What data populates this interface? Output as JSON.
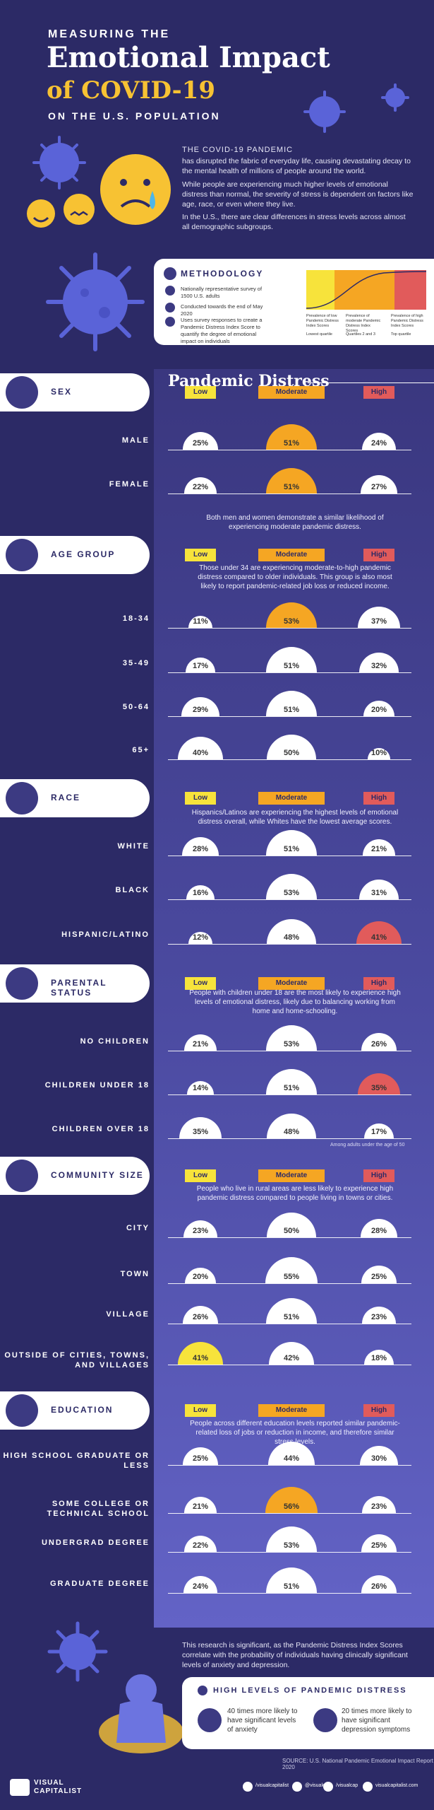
{
  "header": {
    "pre": "MEASURING THE",
    "title_line1": "Emotional Impact",
    "title_line2": "of COVID-19",
    "post": "ON THE U.S. POPULATION"
  },
  "intro": {
    "heading": "THE COVID-19 PANDEMIC",
    "p1": "has disrupted the fabric of everyday life, causing devastating decay to the mental health of millions of people around the world.",
    "p2": "While people are experiencing much higher levels of emotional distress than normal, the severity of stress is dependent on factors like age, race, or even where they live.",
    "p3": "In the U.S., there are clear differences in stress levels across almost all demographic subgroups."
  },
  "methodology": {
    "title": "METHODOLOGY",
    "items": [
      "Nationally representative survey of 1500 U.S. adults",
      "Conducted towards the end of May 2020",
      "Uses survey responses to create a Pandemic Distress Index Score to quantify the degree of emotional impact on individuals"
    ],
    "legend": [
      "Prevalence of low Pandemic Distress Index Scores",
      "Prevalence of moderate Pandemic Distress Index Scores",
      "Prevalence of high Pandemic Distress Index Scores"
    ],
    "keys": [
      "Lowest quartile",
      "Quartiles 2 and 3",
      "Top quartile"
    ]
  },
  "panel_title": "Pandemic Distress",
  "levels": {
    "low": "Low",
    "moderate": "Moderate",
    "high": "High"
  },
  "colors": {
    "low": "#f7e33b",
    "moderate": "#f5a623",
    "high": "#e15b5b",
    "bg": "#2c2a66"
  },
  "chart_data": {
    "type": "table",
    "title": "Pandemic Distress",
    "columns": [
      "Low",
      "Moderate",
      "High"
    ],
    "groups": [
      {
        "name": "SEX",
        "rows": [
          {
            "label": "MALE",
            "values": [
              25,
              51,
              24
            ]
          },
          {
            "label": "FEMALE",
            "values": [
              22,
              51,
              27
            ]
          }
        ],
        "note": "Both men and women demonstrate a similar likelihood of experiencing moderate pandemic distress."
      },
      {
        "name": "AGE GROUP",
        "note": "Those under 34 are experiencing moderate-to-high pandemic distress compared to older individuals. This group is also most likely to report pandemic-related job loss or reduced income.",
        "rows": [
          {
            "label": "18-34",
            "values": [
              11,
              53,
              37
            ]
          },
          {
            "label": "35-49",
            "values": [
              17,
              51,
              32
            ]
          },
          {
            "label": "50-64",
            "values": [
              29,
              51,
              20
            ]
          },
          {
            "label": "65+",
            "values": [
              40,
              50,
              10
            ]
          }
        ]
      },
      {
        "name": "RACE",
        "note": "Hispanics/Latinos are experiencing the highest levels of emotional distress overall, while Whites have the lowest average scores.",
        "rows": [
          {
            "label": "WHITE",
            "values": [
              28,
              51,
              21
            ]
          },
          {
            "label": "BLACK",
            "values": [
              16,
              53,
              31
            ]
          },
          {
            "label": "HISPANIC/LATINO",
            "values": [
              12,
              48,
              41
            ]
          }
        ]
      },
      {
        "name": "PARENTAL STATUS",
        "note": "People with children under 18 are the most likely to experience high levels of emotional distress, likely due to balancing working from home and home-schooling.",
        "rows": [
          {
            "label": "NO CHILDREN",
            "values": [
              21,
              53,
              26
            ]
          },
          {
            "label": "CHILDREN UNDER 18",
            "values": [
              14,
              51,
              35
            ]
          },
          {
            "label": "CHILDREN OVER 18",
            "values": [
              35,
              48,
              17
            ]
          }
        ],
        "footnote": "Among adults under the age of 50"
      },
      {
        "name": "COMMUNITY SIZE",
        "note": "People who live in rural areas are less likely to experience high pandemic distress compared to people living in towns or cities.",
        "rows": [
          {
            "label": "CITY",
            "values": [
              23,
              50,
              28
            ]
          },
          {
            "label": "TOWN",
            "values": [
              20,
              55,
              25
            ]
          },
          {
            "label": "VILLAGE",
            "values": [
              26,
              51,
              23
            ]
          },
          {
            "label": "OUTSIDE OF CITIES, TOWNS, AND VILLAGES",
            "values": [
              41,
              42,
              18
            ]
          }
        ]
      },
      {
        "name": "EDUCATION",
        "note": "People across different education levels reported similar pandemic-related loss of jobs or reduction in income, and therefore similar stress levels.",
        "rows": [
          {
            "label": "HIGH SCHOOL GRADUATE OR LESS",
            "values": [
              25,
              44,
              30
            ]
          },
          {
            "label": "SOME COLLEGE OR TECHNICAL SCHOOL",
            "values": [
              21,
              56,
              23
            ]
          },
          {
            "label": "UNDERGRAD DEGREE",
            "values": [
              22,
              53,
              25
            ]
          },
          {
            "label": "GRADUATE DEGREE",
            "values": [
              24,
              51,
              26
            ]
          }
        ]
      }
    ]
  },
  "footer": {
    "text": "This research is significant, as the Pandemic Distress Index Scores correlate with the probability of individuals having clinically significant levels of anxiety and depression.",
    "hl_title": "HIGH LEVELS OF PANDEMIC DISTRESS",
    "hl1": "40 times more likely to have significant levels of anxiety",
    "hl2": "20 times more likely to have significant depression symptoms",
    "source": "SOURCE: U.S. National Pandemic Emotional Impact Report 2020",
    "brand": "VISUAL CAPITALIST",
    "social": [
      "/visualcapitalist",
      "@visualcap",
      "/visualcap",
      "visualcapitalist.com"
    ]
  }
}
